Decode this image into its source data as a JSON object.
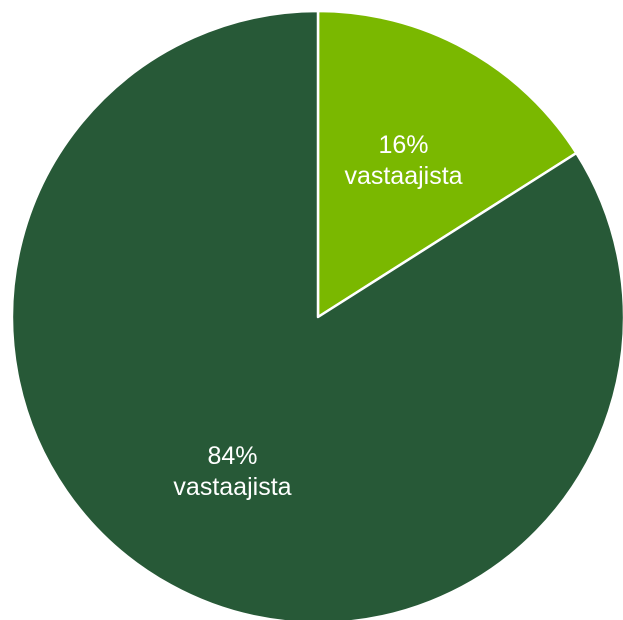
{
  "chart_data": {
    "type": "pie",
    "categories": [
      "vastaajista",
      "vastaajista"
    ],
    "values": [
      16,
      84
    ],
    "value_labels": [
      "16%",
      "84%"
    ],
    "colors": [
      "#7ab800",
      "#275937"
    ]
  }
}
